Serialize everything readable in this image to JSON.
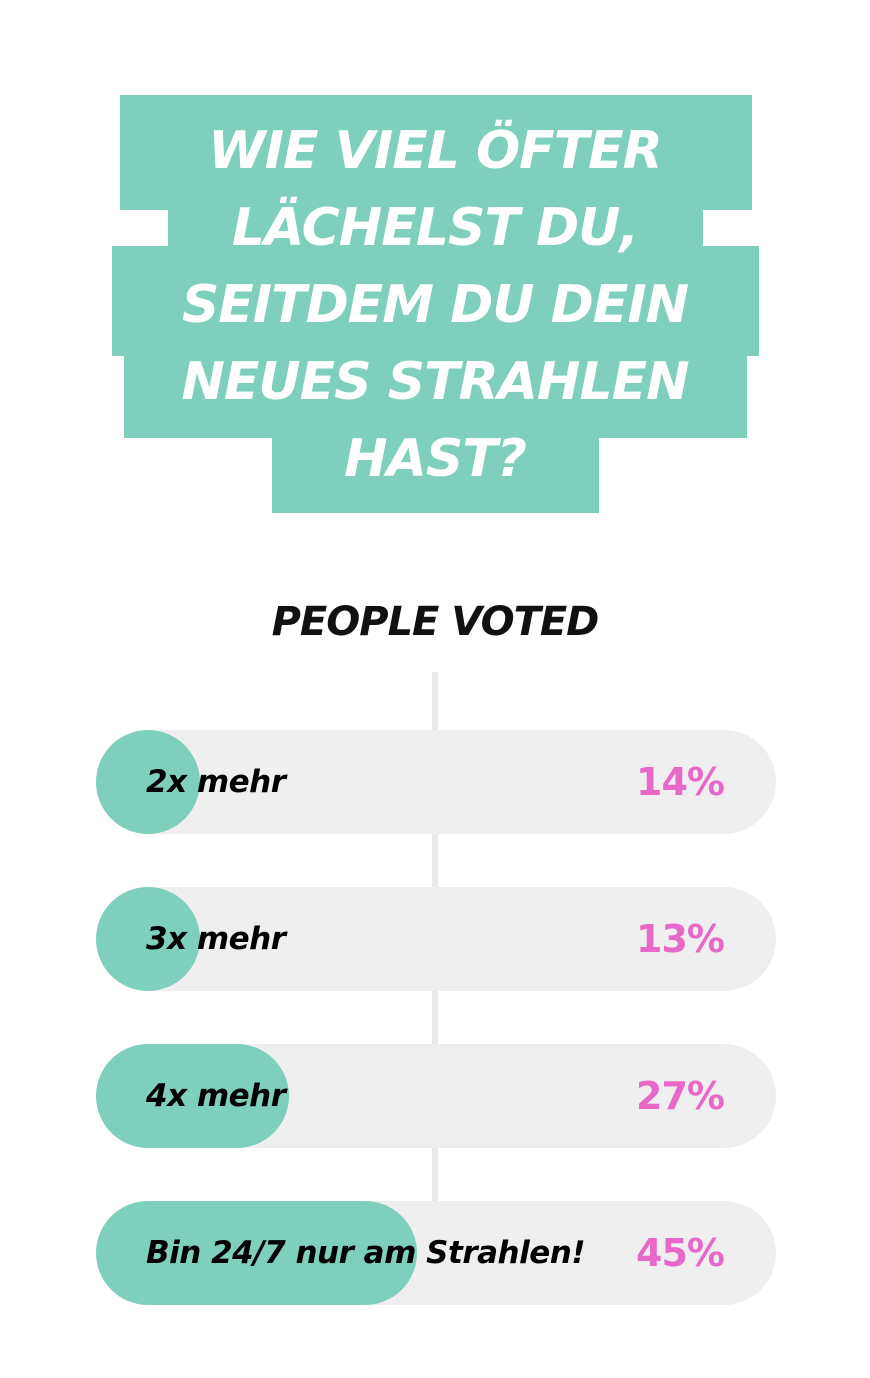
{
  "question": {
    "lines": [
      "WIE VIEL ÖFTER",
      "LÄCHELST DU,",
      "SEITDEM DU DEIN",
      "NEUES STRAHLEN",
      "HAST?"
    ]
  },
  "results_heading": "PEOPLE VOTED",
  "options": [
    {
      "label": "2x mehr",
      "percent_text": "14%",
      "percent": 14
    },
    {
      "label": "3x mehr",
      "percent_text": "13%",
      "percent": 13
    },
    {
      "label": "4x mehr",
      "percent_text": "27%",
      "percent": 27
    },
    {
      "label": "Bin 24/7 nur am Strahlen!",
      "percent_text": "45%",
      "percent": 45
    }
  ],
  "colors": {
    "accent": "#7ecfbb",
    "track": "#efefef",
    "percent_text": "#e868c8",
    "question_text": "#ffffff"
  }
}
